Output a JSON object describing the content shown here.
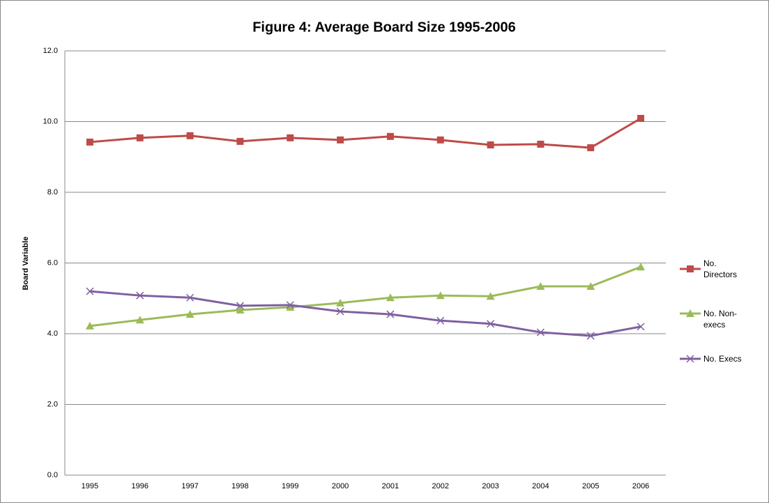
{
  "chart_data": {
    "type": "line",
    "title": "Figure 4: Average Board Size 1995-2006",
    "y_label": "Board Variable",
    "categories": [
      "1995",
      "1996",
      "1997",
      "1998",
      "1999",
      "2000",
      "2001",
      "2002",
      "2003",
      "2004",
      "2005",
      "2006"
    ],
    "series": [
      {
        "name": "No. Directors",
        "color": "#be4b48",
        "marker": "square",
        "values": [
          9.42,
          9.54,
          9.6,
          9.44,
          9.54,
          9.48,
          9.58,
          9.48,
          9.34,
          9.36,
          9.26,
          10.09
        ]
      },
      {
        "name": "No. Non-execs",
        "color": "#9bbb59",
        "marker": "triangle",
        "values": [
          4.22,
          4.39,
          4.55,
          4.67,
          4.75,
          4.87,
          5.02,
          5.08,
          5.06,
          5.34,
          5.34,
          5.89
        ]
      },
      {
        "name": "No. Execs",
        "color": "#7f60a0",
        "marker": "x",
        "values": [
          5.2,
          5.08,
          5.02,
          4.79,
          4.81,
          4.63,
          4.55,
          4.37,
          4.28,
          4.04,
          3.94,
          4.2
        ]
      }
    ],
    "ylim": [
      0,
      12
    ],
    "yticks": [
      {
        "value": 0,
        "label": "0.0"
      },
      {
        "value": 2,
        "label": "2.0"
      },
      {
        "value": 4,
        "label": "4.0"
      },
      {
        "value": 6,
        "label": "6.0"
      },
      {
        "value": 8,
        "label": "8.0"
      },
      {
        "value": 10,
        "label": "10.0"
      },
      {
        "value": 12,
        "label": "12.0"
      }
    ],
    "grid": true,
    "legend": "right"
  }
}
